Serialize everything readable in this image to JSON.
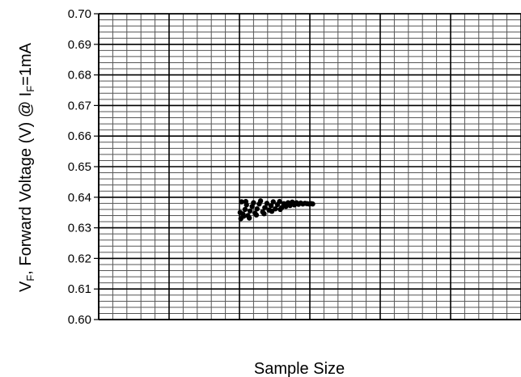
{
  "chart_data": {
    "type": "scatter",
    "title": "",
    "xlabel": "Sample Size",
    "ylabel": {
      "v": "V",
      "v_sub": "F",
      "middle": ", Forward Voltage (V)  @ I",
      "i_sub": "F",
      "end": "=1mA"
    },
    "ylim": [
      0.6,
      0.7
    ],
    "y_ticks": [
      "0.60",
      "0.61",
      "0.62",
      "0.63",
      "0.64",
      "0.65",
      "0.66",
      "0.67",
      "0.68",
      "0.69",
      "0.70"
    ],
    "xlim": [
      0,
      6
    ],
    "grid": true,
    "grid_major_x_step": 1,
    "grid_minor_x_divisions": 5,
    "grid_minor_y_divisions": 5,
    "marker_color": "#000000",
    "series": [
      {
        "values": [
          {
            "x": 2.02,
            "y": 0.633
          },
          {
            "x": 2.05,
            "y": 0.6345
          },
          {
            "x": 2.08,
            "y": 0.636
          },
          {
            "x": 2.1,
            "y": 0.6375
          },
          {
            "x": 2.03,
            "y": 0.6385
          },
          {
            "x": 2.12,
            "y": 0.634
          },
          {
            "x": 2.15,
            "y": 0.6355
          },
          {
            "x": 2.18,
            "y": 0.637
          },
          {
            "x": 2.2,
            "y": 0.6382
          },
          {
            "x": 2.22,
            "y": 0.6348
          },
          {
            "x": 2.25,
            "y": 0.6362
          },
          {
            "x": 2.28,
            "y": 0.6378
          },
          {
            "x": 2.3,
            "y": 0.6388
          },
          {
            "x": 2.33,
            "y": 0.6352
          },
          {
            "x": 2.36,
            "y": 0.6366
          },
          {
            "x": 2.39,
            "y": 0.638
          },
          {
            "x": 2.42,
            "y": 0.6358
          },
          {
            "x": 2.45,
            "y": 0.6372
          },
          {
            "x": 2.48,
            "y": 0.6385
          },
          {
            "x": 2.51,
            "y": 0.6362
          },
          {
            "x": 2.54,
            "y": 0.6376
          },
          {
            "x": 2.57,
            "y": 0.6386
          },
          {
            "x": 2.6,
            "y": 0.6366
          },
          {
            "x": 2.63,
            "y": 0.6379
          },
          {
            "x": 2.66,
            "y": 0.637
          },
          {
            "x": 2.69,
            "y": 0.6382
          },
          {
            "x": 2.72,
            "y": 0.6373
          },
          {
            "x": 2.75,
            "y": 0.6384
          },
          {
            "x": 2.78,
            "y": 0.6375
          },
          {
            "x": 2.81,
            "y": 0.6382
          },
          {
            "x": 2.84,
            "y": 0.6377
          },
          {
            "x": 2.87,
            "y": 0.6381
          },
          {
            "x": 2.9,
            "y": 0.6378
          },
          {
            "x": 2.93,
            "y": 0.638
          },
          {
            "x": 2.96,
            "y": 0.6379
          },
          {
            "x": 2.99,
            "y": 0.6378
          },
          {
            "x": 3.02,
            "y": 0.6379
          },
          {
            "x": 3.04,
            "y": 0.6378
          },
          {
            "x": 2.06,
            "y": 0.6338
          },
          {
            "x": 2.14,
            "y": 0.6332
          },
          {
            "x": 2.24,
            "y": 0.6342
          },
          {
            "x": 2.35,
            "y": 0.6346
          },
          {
            "x": 2.46,
            "y": 0.6354
          },
          {
            "x": 2.58,
            "y": 0.636
          },
          {
            "x": 2.01,
            "y": 0.635
          },
          {
            "x": 2.09,
            "y": 0.6386
          }
        ]
      }
    ]
  }
}
